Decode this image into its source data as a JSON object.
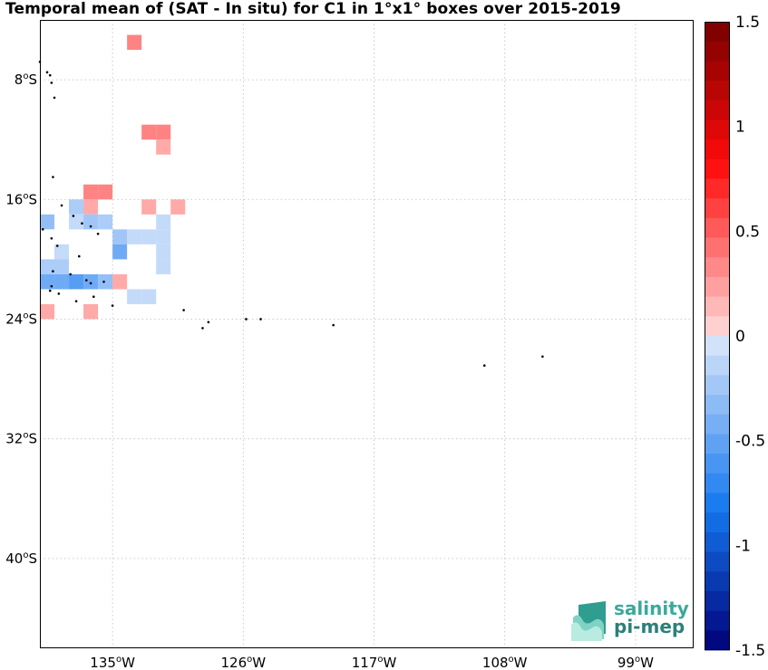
{
  "title": "Temporal mean of (SAT - In situ) for C1 in 1°x1° boxes over 2015-2019",
  "map": {
    "lon_range": [
      -140,
      -95
    ],
    "lat_range": [
      -46,
      -4
    ],
    "lon_ticks": [
      {
        "value": -135,
        "deg": "135",
        "hemi": "W"
      },
      {
        "value": -126,
        "deg": "126",
        "hemi": "W"
      },
      {
        "value": -117,
        "deg": "117",
        "hemi": "W"
      },
      {
        "value": -108,
        "deg": "108",
        "hemi": "W"
      },
      {
        "value": -99,
        "deg": "99",
        "hemi": "W"
      }
    ],
    "lat_ticks": [
      {
        "value": -8,
        "deg": "8",
        "hemi": "S"
      },
      {
        "value": -16,
        "deg": "16",
        "hemi": "S"
      },
      {
        "value": -24,
        "deg": "24",
        "hemi": "S"
      },
      {
        "value": -32,
        "deg": "32",
        "hemi": "S"
      },
      {
        "value": -40,
        "deg": "40",
        "hemi": "S"
      }
    ],
    "grid": true,
    "cells": [
      {
        "lon": -134,
        "lat": -6,
        "value": 0.35
      },
      {
        "lon": -133,
        "lat": -12,
        "value": 0.35
      },
      {
        "lon": -132,
        "lat": -12,
        "value": 0.35
      },
      {
        "lon": -132,
        "lat": -13,
        "value": 0.2
      },
      {
        "lon": -137,
        "lat": -16,
        "value": 0.35
      },
      {
        "lon": -136,
        "lat": -16,
        "value": 0.35
      },
      {
        "lon": -138,
        "lat": -17,
        "value": -0.2
      },
      {
        "lon": -137,
        "lat": -17,
        "value": 0.2
      },
      {
        "lon": -133,
        "lat": -17,
        "value": 0.2
      },
      {
        "lon": -131,
        "lat": -17,
        "value": 0.2
      },
      {
        "lon": -140,
        "lat": -18,
        "value": -0.3
      },
      {
        "lon": -138,
        "lat": -18,
        "value": -0.1
      },
      {
        "lon": -137,
        "lat": -18,
        "value": -0.25
      },
      {
        "lon": -136,
        "lat": -18,
        "value": -0.2
      },
      {
        "lon": -132,
        "lat": -18,
        "value": -0.1
      },
      {
        "lon": -135,
        "lat": -19,
        "value": -0.25
      },
      {
        "lon": -134,
        "lat": -19,
        "value": -0.1
      },
      {
        "lon": -133,
        "lat": -19,
        "value": -0.1
      },
      {
        "lon": -132,
        "lat": -19,
        "value": -0.1
      },
      {
        "lon": -139,
        "lat": -20,
        "value": -0.1
      },
      {
        "lon": -135,
        "lat": -20,
        "value": -0.45
      },
      {
        "lon": -132,
        "lat": -20,
        "value": -0.1
      },
      {
        "lon": -132,
        "lat": -21,
        "value": -0.1
      },
      {
        "lon": -140,
        "lat": -21,
        "value": -0.2
      },
      {
        "lon": -139,
        "lat": -21,
        "value": -0.2
      },
      {
        "lon": -140,
        "lat": -22,
        "value": -0.45
      },
      {
        "lon": -139,
        "lat": -22,
        "value": -0.45
      },
      {
        "lon": -138,
        "lat": -22,
        "value": -0.55
      },
      {
        "lon": -137,
        "lat": -22,
        "value": -0.45
      },
      {
        "lon": -136,
        "lat": -22,
        "value": -0.3
      },
      {
        "lon": -135,
        "lat": -22,
        "value": 0.2
      },
      {
        "lon": -134,
        "lat": -23,
        "value": -0.1
      },
      {
        "lon": -133,
        "lat": -23,
        "value": -0.1
      },
      {
        "lon": -140,
        "lat": -24,
        "value": 0.2
      },
      {
        "lon": -137,
        "lat": -24,
        "value": 0.2
      }
    ],
    "islands": [
      {
        "lon": -140.0,
        "lat": -6.8
      },
      {
        "lon": -139.5,
        "lat": -7.5
      },
      {
        "lon": -139.3,
        "lat": -7.7
      },
      {
        "lon": -139.2,
        "lat": -8.2
      },
      {
        "lon": -139.0,
        "lat": -9.2
      },
      {
        "lon": -139.1,
        "lat": -14.5
      },
      {
        "lon": -138.5,
        "lat": -16.4
      },
      {
        "lon": -137.7,
        "lat": -17.1
      },
      {
        "lon": -137.1,
        "lat": -17.6
      },
      {
        "lon": -136.5,
        "lat": -17.8
      },
      {
        "lon": -136.0,
        "lat": -18.3
      },
      {
        "lon": -139.8,
        "lat": -18.0
      },
      {
        "lon": -139.2,
        "lat": -18.6
      },
      {
        "lon": -138.8,
        "lat": -19.1
      },
      {
        "lon": -137.3,
        "lat": -19.8
      },
      {
        "lon": -139.1,
        "lat": -20.8
      },
      {
        "lon": -137.9,
        "lat": -21.0
      },
      {
        "lon": -136.8,
        "lat": -21.4
      },
      {
        "lon": -136.5,
        "lat": -21.6
      },
      {
        "lon": -135.6,
        "lat": -21.5
      },
      {
        "lon": -139.2,
        "lat": -21.8
      },
      {
        "lon": -139.3,
        "lat": -22.1
      },
      {
        "lon": -138.7,
        "lat": -22.3
      },
      {
        "lon": -137.5,
        "lat": -22.8
      },
      {
        "lon": -136.3,
        "lat": -22.5
      },
      {
        "lon": -135.0,
        "lat": -23.1
      },
      {
        "lon": -130.1,
        "lat": -23.4
      },
      {
        "lon": -128.4,
        "lat": -24.2
      },
      {
        "lon": -124.8,
        "lat": -24.0
      },
      {
        "lon": -125.8,
        "lat": -24.0
      },
      {
        "lon": -128.8,
        "lat": -24.6
      },
      {
        "lon": -119.8,
        "lat": -24.4
      },
      {
        "lon": -109.4,
        "lat": -27.1
      },
      {
        "lon": -105.4,
        "lat": -26.5
      }
    ]
  },
  "colorbar": {
    "min": -1.5,
    "max": 1.5,
    "levels": 32,
    "labels": [
      {
        "value": 1.5,
        "text": "1.5"
      },
      {
        "value": 1.0,
        "text": "1"
      },
      {
        "value": 0.5,
        "text": "0.5"
      },
      {
        "value": 0.0,
        "text": "0"
      },
      {
        "value": -0.5,
        "text": "-0.5"
      },
      {
        "value": -1.0,
        "text": "-1"
      },
      {
        "value": -1.5,
        "text": "-1.5"
      }
    ]
  },
  "logo": {
    "line1": "salinity",
    "line2": "pi-mep"
  }
}
